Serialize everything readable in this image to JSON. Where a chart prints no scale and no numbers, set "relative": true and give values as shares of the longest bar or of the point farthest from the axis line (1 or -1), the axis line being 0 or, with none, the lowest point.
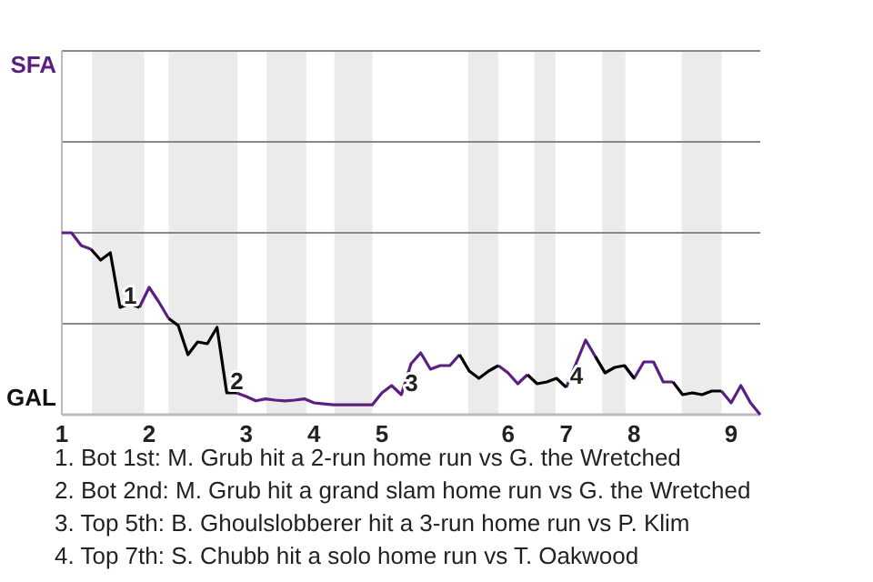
{
  "chart_data": {
    "type": "line",
    "relative": true,
    "ref_lines": [
      {
        "axis": "y",
        "value": 0.5,
        "color": "#888888"
      },
      {
        "axis": "y",
        "value": 1,
        "color": "#888888"
      },
      {
        "axis": "y",
        "value": 1.5,
        "color": "#888888"
      },
      {
        "axis": "y",
        "value": 2,
        "color": "#888888"
      }
    ],
    "categories": [
      "1",
      null,
      null,
      null,
      null,
      null,
      null,
      null,
      null,
      "2",
      null,
      null,
      null,
      null,
      null,
      null,
      null,
      null,
      null,
      "3",
      null,
      null,
      null,
      null,
      null,
      null,
      "4",
      null,
      null,
      null,
      null,
      null,
      null,
      "5",
      null,
      null,
      null,
      null,
      null,
      null,
      null,
      null,
      null,
      null,
      null,
      null,
      "6",
      null,
      null,
      null,
      null,
      null,
      "7",
      null,
      null,
      null,
      null,
      null,
      null,
      "8",
      null,
      null,
      null,
      null,
      null,
      null,
      null,
      null,
      null,
      "9",
      null,
      null,
      null
    ],
    "series": [
      {
        "color": "#5a1f80",
        "values": [
          1,
          1,
          0.93,
          0.91,
          null,
          null,
          null,
          null,
          0.59,
          0.7,
          0.62,
          0.53,
          null,
          null,
          null,
          null,
          null,
          null,
          0.12,
          0.1,
          0.076,
          0.087,
          0.08,
          0.076,
          0.08,
          0.087,
          0.065,
          0.059,
          0.054,
          0.054,
          0.054,
          0.054,
          0.054,
          0.12,
          0.16,
          0.11,
          0.28,
          0.34,
          0.25,
          0.27,
          0.27,
          0.33,
          null,
          null,
          null,
          0.27,
          0.23,
          0.17,
          0.22,
          null,
          null,
          null,
          0.15,
          0.28,
          0.41,
          0.32,
          0.23,
          null,
          0.27,
          0.2,
          0.29,
          0.29,
          0.18,
          0.18,
          null,
          null,
          null,
          null,
          0.13,
          0.065,
          0.16,
          0.065,
          0
        ]
      },
      {
        "color": "#000000",
        "values": [
          null,
          null,
          null,
          0.91,
          0.85,
          0.89,
          0.59,
          0.61,
          0.59,
          null,
          null,
          0.53,
          0.49,
          0.33,
          0.4,
          0.39,
          0.48,
          0.12,
          0.12,
          null,
          null,
          null,
          null,
          null,
          null,
          null,
          null,
          null,
          null,
          null,
          null,
          null,
          null,
          null,
          null,
          null,
          null,
          null,
          null,
          null,
          null,
          0.33,
          0.24,
          0.2,
          0.24,
          0.27,
          null,
          null,
          0.22,
          0.17,
          0.18,
          0.2,
          0.15,
          null,
          null,
          0.32,
          0.23,
          0.26,
          0.27,
          0.2,
          null,
          null,
          null,
          0.18,
          0.11,
          0.12,
          0.11,
          0.13,
          0.13,
          null,
          null,
          null,
          null
        ]
      }
    ],
    "annotations": [
      "SFA",
      "GAL",
      {
        "text": "1",
        "y": 0.59
      },
      {
        "text": "2",
        "y": 0.12
      },
      {
        "text": "3",
        "y": 0.11
      },
      {
        "text": "4",
        "y": 0.15
      },
      "1. Bot 1st: M. Grub hit a 2-run home run vs G. the Wretched",
      "2. Bot 2nd: M. Grub hit a grand slam home run vs G. the Wretched",
      "3. Top 5th: B. Ghoulslobberer hit a 3-run home run vs P. Klim",
      "4. Top 7th: S. Chubb hit a solo home run vs T. Oakwood"
    ]
  }
}
